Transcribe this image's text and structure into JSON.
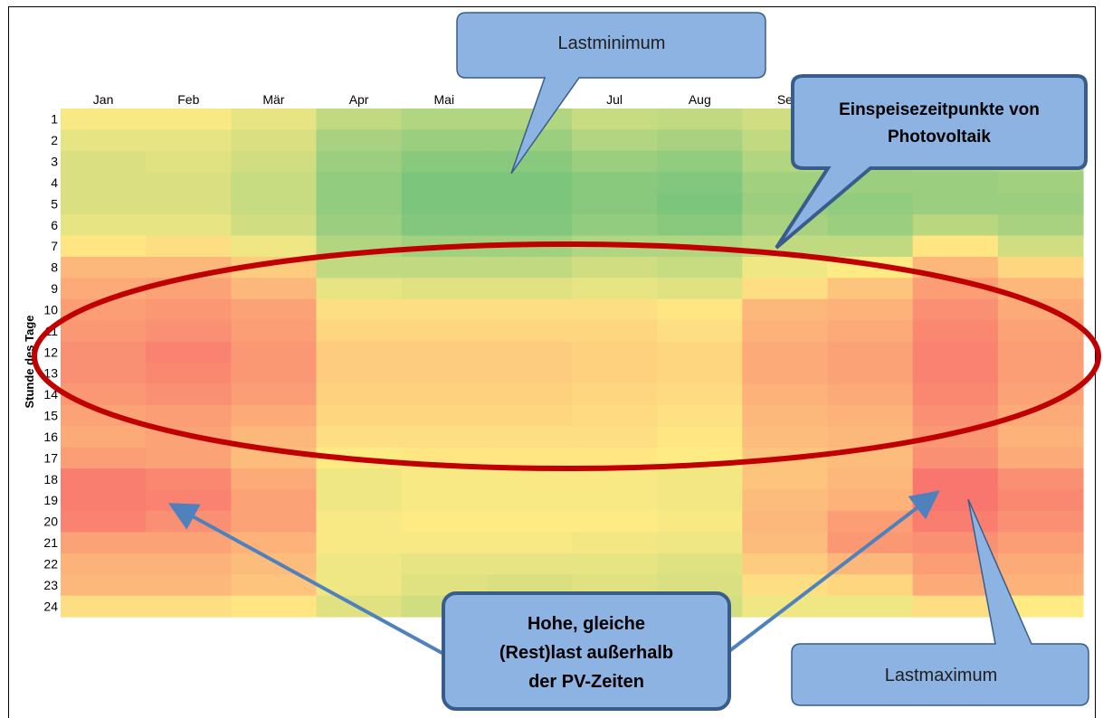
{
  "chart_data": {
    "type": "heatmap",
    "months": [
      "Jan",
      "Feb",
      "Mär",
      "Apr",
      "Mai",
      "",
      "Jul",
      "Aug",
      "Se",
      "",
      "",
      ""
    ],
    "hours": [
      "1",
      "2",
      "3",
      "4",
      "5",
      "6",
      "7",
      "8",
      "9",
      "10",
      "11",
      "12",
      "13",
      "14",
      "15",
      "16",
      "17",
      "18",
      "19",
      "20",
      "21",
      "22",
      "23",
      "24"
    ],
    "ylabel": "Stunde des Tage",
    "value_scale": "relative load 0 (green, minimum) to 1 (red, maximum)",
    "values": [
      [
        0.48,
        0.48,
        0.42,
        0.3,
        0.25,
        0.25,
        0.32,
        0.3,
        0.35,
        0.3,
        0.32,
        0.32
      ],
      [
        0.42,
        0.42,
        0.38,
        0.22,
        0.18,
        0.18,
        0.25,
        0.22,
        0.3,
        0.25,
        0.28,
        0.3
      ],
      [
        0.38,
        0.4,
        0.35,
        0.18,
        0.12,
        0.12,
        0.18,
        0.15,
        0.25,
        0.2,
        0.22,
        0.25
      ],
      [
        0.38,
        0.38,
        0.32,
        0.15,
        0.08,
        0.08,
        0.12,
        0.1,
        0.2,
        0.18,
        0.18,
        0.2
      ],
      [
        0.38,
        0.38,
        0.32,
        0.15,
        0.08,
        0.08,
        0.12,
        0.08,
        0.18,
        0.15,
        0.18,
        0.18
      ],
      [
        0.42,
        0.42,
        0.35,
        0.18,
        0.1,
        0.1,
        0.15,
        0.12,
        0.22,
        0.18,
        0.28,
        0.22
      ],
      [
        0.52,
        0.55,
        0.45,
        0.25,
        0.2,
        0.2,
        0.25,
        0.25,
        0.3,
        0.3,
        0.52,
        0.35
      ],
      [
        0.7,
        0.7,
        0.62,
        0.3,
        0.3,
        0.3,
        0.35,
        0.32,
        0.45,
        0.5,
        0.7,
        0.58
      ],
      [
        0.75,
        0.78,
        0.7,
        0.42,
        0.4,
        0.4,
        0.42,
        0.4,
        0.55,
        0.65,
        0.8,
        0.7
      ],
      [
        0.8,
        0.82,
        0.78,
        0.55,
        0.55,
        0.55,
        0.55,
        0.52,
        0.7,
        0.72,
        0.85,
        0.75
      ],
      [
        0.82,
        0.85,
        0.8,
        0.58,
        0.58,
        0.58,
        0.58,
        0.55,
        0.72,
        0.75,
        0.88,
        0.78
      ],
      [
        0.85,
        0.9,
        0.82,
        0.62,
        0.62,
        0.62,
        0.6,
        0.58,
        0.75,
        0.78,
        0.9,
        0.8
      ],
      [
        0.85,
        0.88,
        0.82,
        0.62,
        0.62,
        0.62,
        0.6,
        0.58,
        0.75,
        0.78,
        0.9,
        0.8
      ],
      [
        0.82,
        0.85,
        0.8,
        0.6,
        0.6,
        0.6,
        0.58,
        0.56,
        0.72,
        0.75,
        0.88,
        0.78
      ],
      [
        0.78,
        0.8,
        0.75,
        0.58,
        0.58,
        0.58,
        0.56,
        0.54,
        0.7,
        0.72,
        0.85,
        0.75
      ],
      [
        0.75,
        0.78,
        0.7,
        0.55,
        0.55,
        0.55,
        0.55,
        0.52,
        0.68,
        0.7,
        0.82,
        0.72
      ],
      [
        0.8,
        0.78,
        0.68,
        0.5,
        0.52,
        0.52,
        0.52,
        0.5,
        0.65,
        0.68,
        0.85,
        0.75
      ],
      [
        0.92,
        0.88,
        0.75,
        0.45,
        0.48,
        0.48,
        0.48,
        0.46,
        0.65,
        0.7,
        0.95,
        0.85
      ],
      [
        0.92,
        0.9,
        0.78,
        0.45,
        0.48,
        0.48,
        0.48,
        0.46,
        0.68,
        0.72,
        0.95,
        0.88
      ],
      [
        0.9,
        0.85,
        0.78,
        0.48,
        0.5,
        0.5,
        0.5,
        0.48,
        0.7,
        0.8,
        0.92,
        0.85
      ],
      [
        0.78,
        0.78,
        0.72,
        0.48,
        0.48,
        0.48,
        0.46,
        0.45,
        0.68,
        0.82,
        0.85,
        0.8
      ],
      [
        0.72,
        0.72,
        0.68,
        0.45,
        0.42,
        0.42,
        0.42,
        0.4,
        0.62,
        0.7,
        0.8,
        0.75
      ],
      [
        0.7,
        0.7,
        0.65,
        0.45,
        0.4,
        0.38,
        0.4,
        0.38,
        0.55,
        0.58,
        0.75,
        0.72
      ],
      [
        0.55,
        0.55,
        0.52,
        0.4,
        0.35,
        0.35,
        0.38,
        0.36,
        0.45,
        0.45,
        0.55,
        0.5
      ]
    ]
  },
  "callouts": {
    "lastminimum": "Lastminimum",
    "einspeise_line1": "Einspeisezeitpunkte von",
    "einspeise_line2": "Photovoltaik",
    "hohe_line1": "Hohe, gleiche",
    "hohe_line2": "(Rest)last außerhalb",
    "hohe_line3": "der PV-Zeiten",
    "lastmaximum": "Lastmaximum"
  },
  "colors": {
    "low": "#63be7b",
    "mid": "#ffeb84",
    "high": "#f8696b",
    "callout_fill": "#8db3e2",
    "callout_border": "#385d8a",
    "ellipse": "#c00000",
    "arrow": "#4f81bd"
  }
}
